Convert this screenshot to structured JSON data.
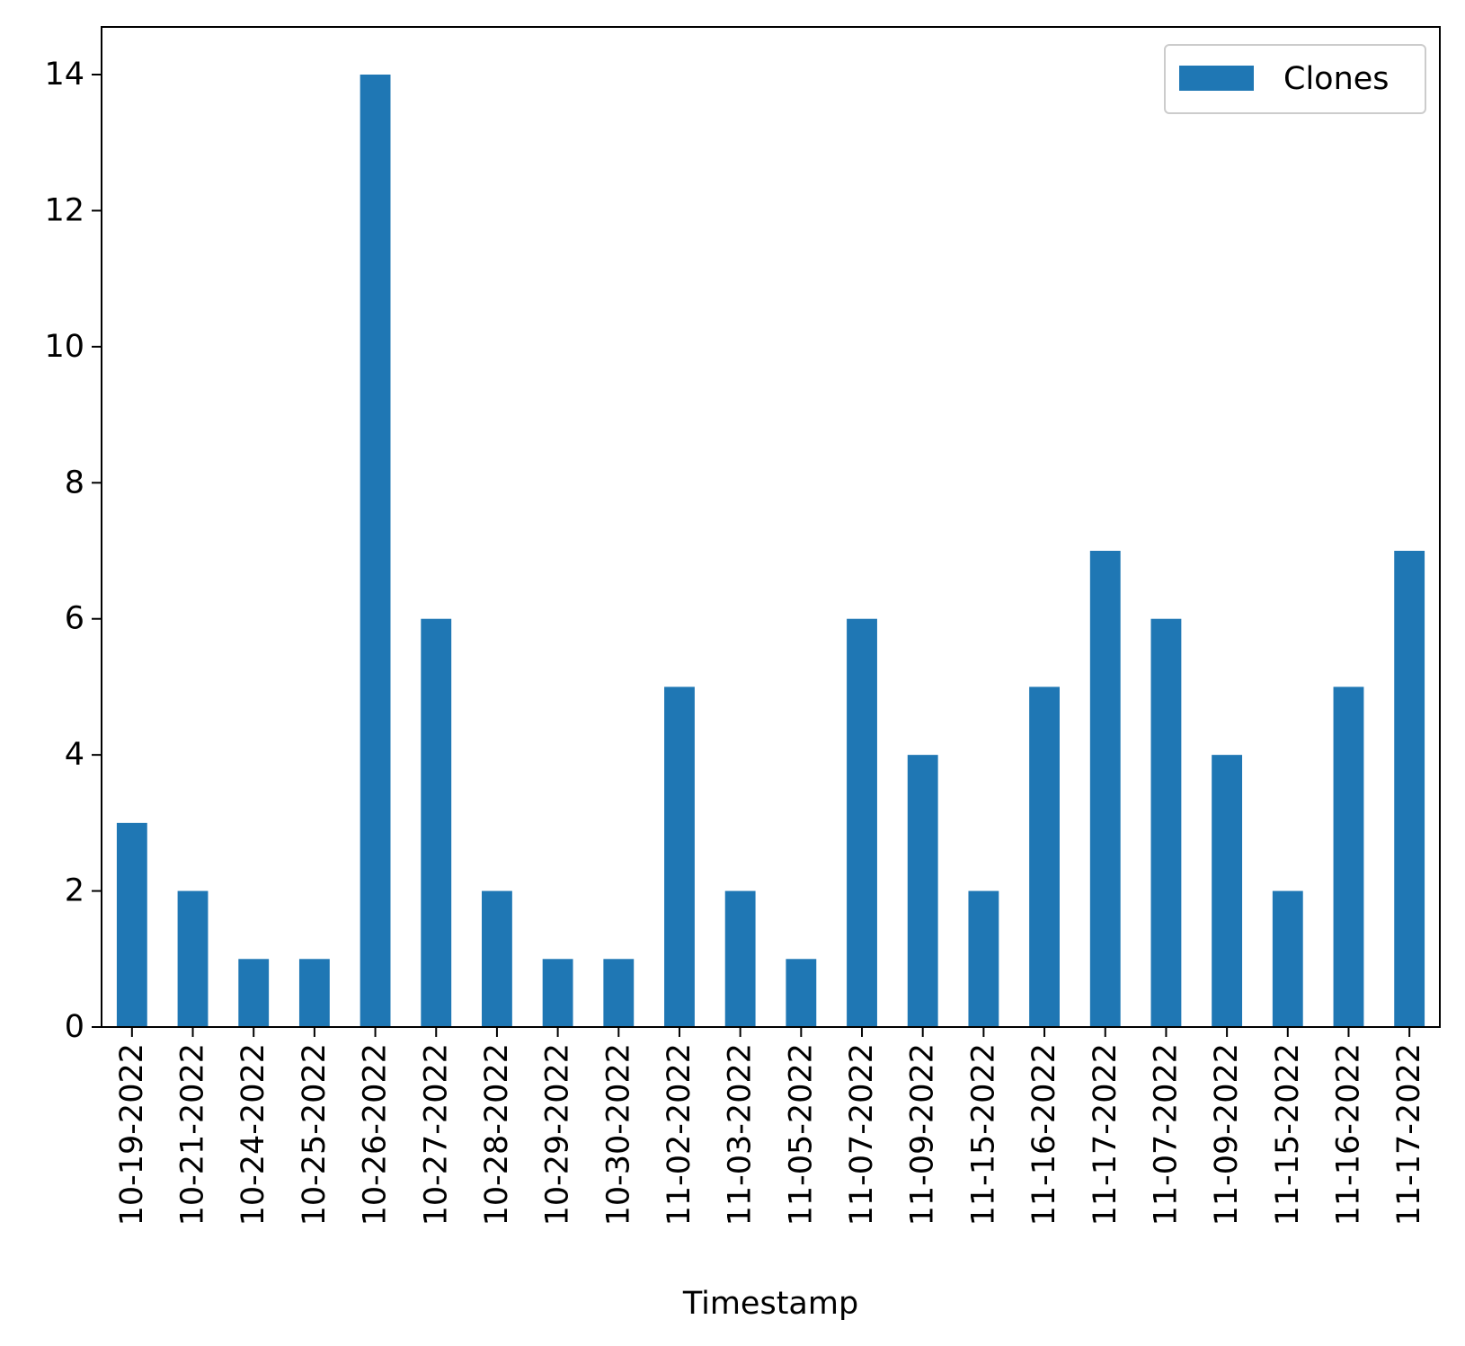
{
  "chart_data": {
    "type": "bar",
    "title": "",
    "xlabel": "Timestamp",
    "ylabel": "",
    "categories": [
      "10-19-2022",
      "10-21-2022",
      "10-24-2022",
      "10-25-2022",
      "10-26-2022",
      "10-27-2022",
      "10-28-2022",
      "10-29-2022",
      "10-30-2022",
      "11-02-2022",
      "11-03-2022",
      "11-05-2022",
      "11-07-2022",
      "11-09-2022",
      "11-15-2022",
      "11-16-2022",
      "11-17-2022",
      "11-07-2022",
      "11-09-2022",
      "11-15-2022",
      "11-16-2022",
      "11-17-2022"
    ],
    "series": [
      {
        "name": "Clones",
        "color": "#1f77b4",
        "values": [
          3,
          2,
          1,
          1,
          14,
          6,
          2,
          1,
          1,
          5,
          2,
          1,
          6,
          4,
          2,
          5,
          7,
          6,
          4,
          2,
          5,
          7
        ]
      }
    ],
    "ylim": [
      0,
      14.7
    ],
    "yticks": [
      0,
      2,
      4,
      6,
      8,
      10,
      12,
      14
    ],
    "grid": false,
    "legend_position": "top-right"
  }
}
